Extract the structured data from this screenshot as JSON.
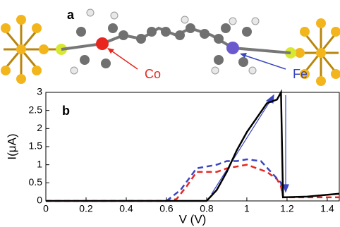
{
  "chart_data": {
    "type": "line",
    "xlabel": "V (V)",
    "ylabel": "I(μA)",
    "annotations": [
      "a",
      "b",
      "Co",
      "Fe"
    ],
    "xlim": [
      0,
      1.46
    ],
    "xticks": [
      0,
      0.2,
      0.4,
      0.6,
      0.8,
      1,
      1.2,
      1.4
    ],
    "ylim": [
      0,
      3
    ],
    "yticks": [
      0,
      0.5,
      1,
      1.5,
      2,
      2.5,
      3
    ],
    "series": [
      {
        "color": "#e8261f",
        "dash": true,
        "x": [
          0,
          0.6,
          0.65,
          0.7,
          0.75,
          0.8,
          0.85,
          0.9,
          0.95,
          1.0,
          1.05,
          1.1,
          1.15,
          1.17,
          1.18,
          1.3,
          1.46
        ],
        "values": [
          0,
          0,
          0.05,
          0.4,
          0.8,
          0.8,
          0.8,
          0.9,
          0.95,
          1.0,
          0.9,
          0.8,
          0.6,
          0.4,
          0.1,
          0.1,
          0.1
        ]
      },
      {
        "color": "#3a45c0",
        "dash": true,
        "x": [
          0.6,
          0.67,
          0.75,
          0.8,
          0.85,
          0.9,
          0.95,
          1.0,
          1.07,
          1.12,
          1.17,
          1.18
        ],
        "values": [
          0,
          0.3,
          0.9,
          0.95,
          1.0,
          1.1,
          1.1,
          1.15,
          1.1,
          0.8,
          0.5,
          0.1
        ]
      },
      {
        "color": "#000000",
        "dash": false,
        "x": [
          0,
          0.8,
          0.85,
          0.9,
          0.95,
          1.0,
          1.05,
          1.1,
          1.15,
          1.17,
          1.18,
          1.3,
          1.46
        ],
        "values": [
          0,
          0,
          0.3,
          0.8,
          1.4,
          1.9,
          2.3,
          2.7,
          2.8,
          3.0,
          0.1,
          0.12,
          0.2
        ]
      }
    ]
  }
}
